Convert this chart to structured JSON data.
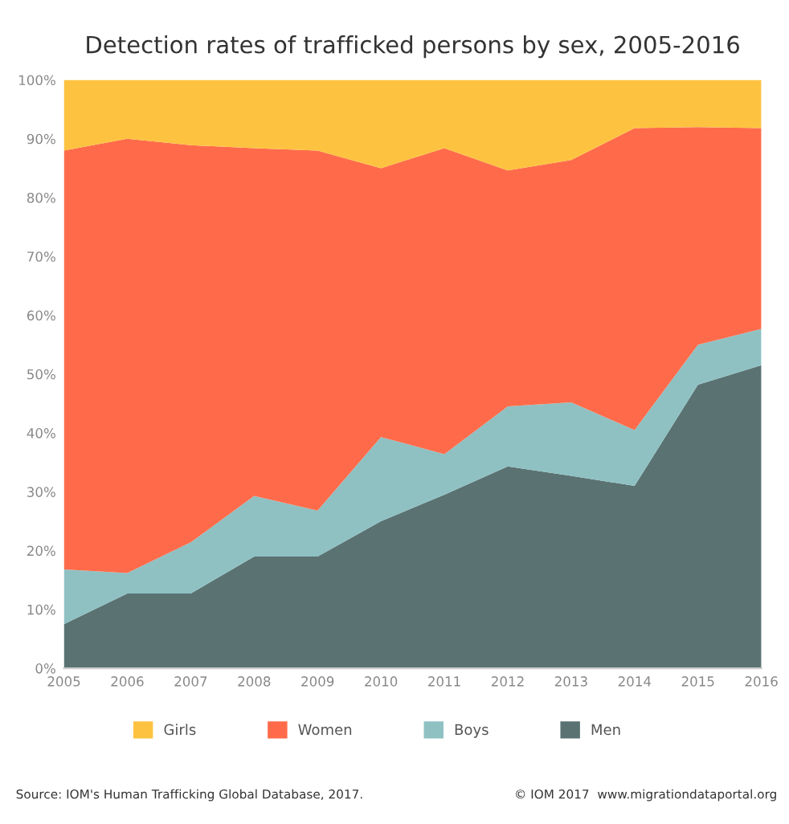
{
  "chart_data": {
    "type": "area",
    "stacked": true,
    "title": "Detection rates of trafficked persons by sex, 2005-2016",
    "categories": [
      "2005",
      "2006",
      "2007",
      "2008",
      "2009",
      "2010",
      "2011",
      "2012",
      "2013",
      "2014",
      "2015",
      "2016"
    ],
    "series": [
      {
        "name": "Men",
        "color": "#5a7272",
        "values": [
          7.5,
          12.7,
          12.7,
          19,
          19,
          25,
          29.5,
          34.3,
          32.7,
          31,
          48.2,
          51.5
        ]
      },
      {
        "name": "Boys",
        "color": "#8fc1c3",
        "values": [
          9.3,
          3.5,
          8.7,
          10.3,
          7.8,
          14.3,
          6.9,
          10.2,
          12.5,
          9.5,
          6.8,
          6.2
        ]
      },
      {
        "name": "Women",
        "color": "#ff6b4a",
        "values": [
          71.2,
          73.8,
          67.5,
          59.1,
          61.2,
          45.7,
          52,
          40.1,
          41.2,
          51.3,
          37,
          34.1
        ]
      },
      {
        "name": "Girls",
        "color": "#fdc340",
        "values": [
          12,
          10,
          11.1,
          11.6,
          12,
          15,
          11.6,
          15.4,
          13.6,
          8.2,
          8,
          8.2
        ]
      }
    ],
    "ylim": [
      0,
      100
    ],
    "yticks": [
      {
        "value": 0,
        "label": "0%"
      },
      {
        "value": 10,
        "label": "10%"
      },
      {
        "value": 20,
        "label": "20%"
      },
      {
        "value": 30,
        "label": "30%"
      },
      {
        "value": 40,
        "label": "40%"
      },
      {
        "value": 50,
        "label": "50%"
      },
      {
        "value": 60,
        "label": "60%"
      },
      {
        "value": 70,
        "label": "70%"
      },
      {
        "value": 80,
        "label": "80%"
      },
      {
        "value": 90,
        "label": "90%"
      },
      {
        "value": 100,
        "label": "100%"
      }
    ],
    "grid": false,
    "legend": "bottom",
    "annotations": [
      "Source: IOM's Human Trafficking Global Database, 2017.",
      "© IOM 2017  www.migrationdataportal.org"
    ]
  }
}
